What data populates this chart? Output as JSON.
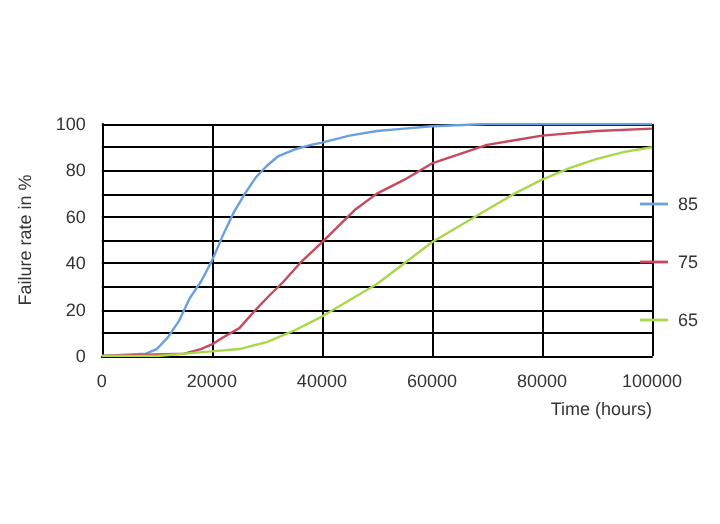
{
  "chart_data": {
    "type": "line",
    "xlabel": "Time (hours)",
    "ylabel": "Failure rate in %",
    "xlim": [
      0,
      100000
    ],
    "xticks": [
      0,
      20000,
      40000,
      60000,
      80000,
      100000
    ],
    "ylim": [
      0,
      100
    ],
    "yticks": [
      0,
      {
        "value": 10,
        "label": null
      },
      20,
      {
        "value": 30,
        "label": null
      },
      40,
      {
        "value": 50,
        "label": null
      },
      60,
      {
        "value": 70,
        "label": null
      },
      80,
      {
        "value": 90,
        "label": null
      },
      100
    ],
    "grid": true,
    "legend": "right",
    "marker": "none",
    "line_style": "solid",
    "series": [
      {
        "name": "85",
        "color": "#6a9fe0",
        "x": [
          0,
          8000,
          10000,
          12000,
          14000,
          16000,
          18000,
          20000,
          22000,
          24000,
          26000,
          28000,
          30000,
          32000,
          35000,
          38000,
          40000,
          45000,
          50000,
          55000,
          60000,
          70000,
          80000,
          100000
        ],
        "values": [
          0,
          1,
          3,
          8,
          15,
          25,
          32,
          41,
          52,
          62,
          70,
          77,
          82,
          86,
          89,
          91,
          92,
          95,
          97,
          98,
          99,
          100,
          100,
          100
        ]
      },
      {
        "name": "75",
        "color": "#c8485e",
        "x": [
          0,
          15000,
          18000,
          20000,
          22000,
          25000,
          28000,
          30000,
          33000,
          36000,
          40000,
          43000,
          46000,
          50000,
          55000,
          60000,
          65000,
          70000,
          75000,
          80000,
          90000,
          100000
        ],
        "values": [
          0,
          1,
          3,
          5,
          8,
          12,
          20,
          25,
          32,
          40,
          49,
          56,
          63,
          70,
          76,
          83,
          87,
          91,
          93,
          95,
          97,
          98
        ]
      },
      {
        "name": "65",
        "color": "#a8d84a",
        "x": [
          0,
          10000,
          20000,
          25000,
          30000,
          35000,
          40000,
          45000,
          50000,
          55000,
          60000,
          65000,
          70000,
          75000,
          80000,
          85000,
          90000,
          95000,
          100000
        ],
        "values": [
          0,
          0,
          2,
          3,
          6,
          11,
          17,
          24,
          31,
          40,
          49,
          56,
          63,
          70,
          76,
          81,
          85,
          88,
          90
        ]
      }
    ]
  }
}
